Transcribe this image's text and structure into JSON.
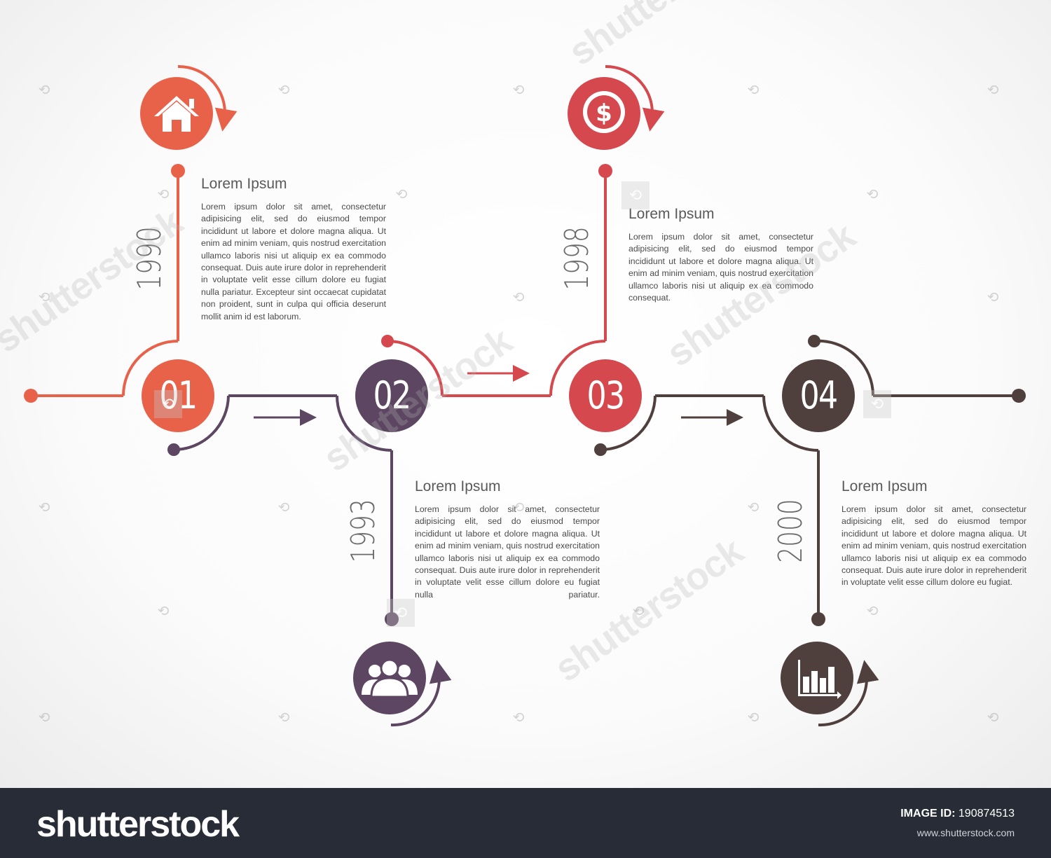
{
  "colors": {
    "orange": "#e8624a",
    "purple": "#5c4661",
    "red": "#d4484e",
    "brown": "#4f3f3d"
  },
  "steps": [
    {
      "number": "01",
      "year": "1990",
      "icon": "home-icon",
      "color": "#e8624a",
      "title": "Lorem Ipsum",
      "text": "Lorem ipsum dolor sit amet, consectetur adipisicing elit, sed do eiusmod tempor incididunt ut labore et dolore magna aliqua. Ut enim ad minim veniam, quis nostrud exercitation ullamco laboris nisi ut aliquip ex ea commodo consequat. Duis aute irure dolor in reprehenderit in voluptate velit esse cillum dolore eu fugiat nulla pariatur. Excepteur sint occaecat cupidatat non proident, sunt in culpa qui officia deserunt mollit anim id est laborum."
    },
    {
      "number": "02",
      "year": "1993",
      "icon": "people-icon",
      "color": "#5c4661",
      "title": "Lorem Ipsum",
      "text": "Lorem ipsum dolor sit amet, consectetur adipisicing elit, sed do eiusmod tempor incididunt ut labore et dolore magna aliqua. Ut enim ad minim veniam, quis nostrud exercitation ullamco laboris nisi ut aliquip ex ea commodo consequat. Duis aute irure dolor in reprehenderit in voluptate velit esse cillum dolore eu fugiat nulla pariatur."
    },
    {
      "number": "03",
      "year": "1998",
      "icon": "dollar-coin-icon",
      "color": "#d4484e",
      "title": "Lorem Ipsum",
      "text": "Lorem ipsum dolor sit amet, consectetur adipisicing elit, sed do eiusmod tempor incididunt ut labore et dolore magna aliqua. Ut enim ad minim veniam, quis nostrud exercitation ullamco laboris nisi ut aliquip ex ea commodo consequat."
    },
    {
      "number": "04",
      "year": "2000",
      "icon": "bar-chart-icon",
      "color": "#4f3f3d",
      "title": "Lorem Ipsum",
      "text": "Lorem ipsum dolor sit amet, consectetur adipisicing elit, sed do eiusmod tempor incididunt ut labore et dolore magna aliqua. Ut enim ad minim veniam, quis nostrud exercitation ullamco laboris nisi ut aliquip ex ea commodo consequat. Duis aute irure dolor in reprehenderit in voluptate velit esse cillum dolore eu fugiat."
    }
  ],
  "watermark": {
    "text": "shutterstock"
  },
  "footer": {
    "brand": "shutterstock",
    "image_id_label": "IMAGE ID:",
    "image_id": "190874513",
    "site": "www.shutterstock.com"
  }
}
